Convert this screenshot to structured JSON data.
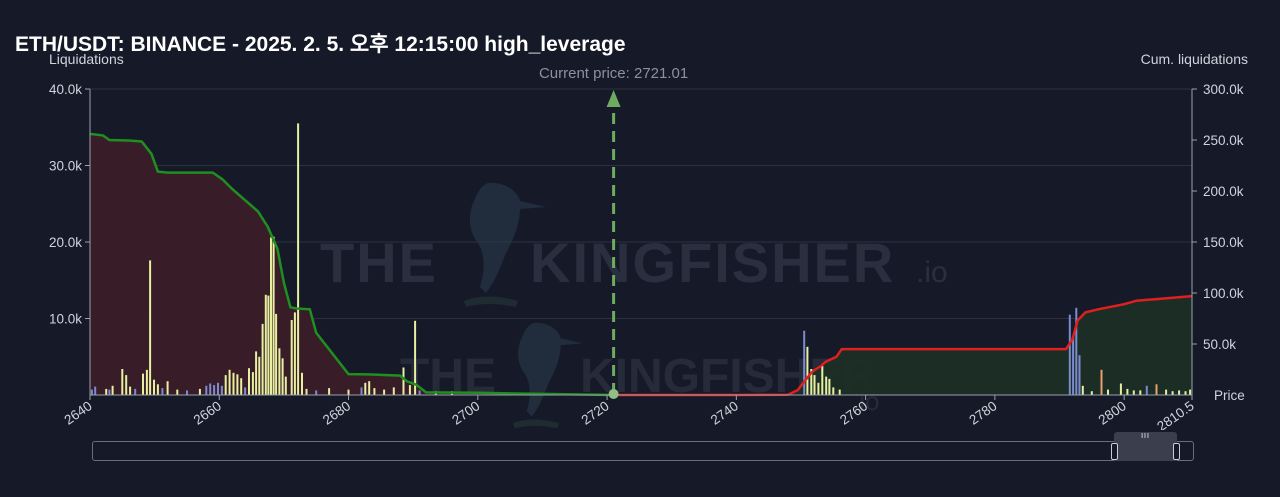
{
  "header": {
    "title": "ETH/USDT: BINANCE - 2025. 2. 5. 오후 12:15:00 high_leverage"
  },
  "watermark": {
    "brand": "THE KINGFISHER",
    "suffix": ".io"
  },
  "scroller": {
    "grip": "III"
  },
  "chart_data": {
    "type": "bar",
    "left_axis_label": "Liquidations",
    "right_axis_label": "Cum. liquidations",
    "x_axis_label": "Price",
    "current_price_label": "Current price: 2721.01",
    "current_price": 2721.01,
    "xlim": [
      2640,
      2810.5
    ],
    "ylim_left": [
      0,
      40000
    ],
    "ylim_right": [
      0,
      300000
    ],
    "x_ticks": [
      2640,
      2660,
      2680,
      2700,
      2720,
      2740,
      2760,
      2780,
      2800,
      2810.5
    ],
    "x_tick_labels": [
      "2640",
      "2660",
      "2680",
      "2700",
      "2720",
      "2740",
      "2760",
      "2780",
      "2800",
      "2810.5"
    ],
    "y_ticks_left": [
      10000,
      20000,
      30000,
      40000
    ],
    "y_tick_labels_left": [
      "10.0k",
      "20.0k",
      "30.0k",
      "40.0k"
    ],
    "y_ticks_right": [
      50000,
      100000,
      150000,
      200000,
      250000,
      300000
    ],
    "y_tick_labels_right": [
      "50.0k",
      "100.0k",
      "150.0k",
      "200.0k",
      "250.0k",
      "300.0k"
    ],
    "colors": {
      "long_cum_line": "#1f8f1f",
      "short_cum_line": "#e01f1f",
      "long_fill": "#3a1d28",
      "short_fill": "#1b2e25",
      "bar_yellow": "#e7f0a0",
      "bar_blue": "#7c8bd0",
      "bar_orange": "#e8a070",
      "current_price_line": "#6dab5f",
      "grid": "#2c3040"
    },
    "long_bars": [
      {
        "x": 2640.3,
        "v": 700,
        "c": "blue"
      },
      {
        "x": 2640.8,
        "v": 1100,
        "c": "blue"
      },
      {
        "x": 2642.5,
        "v": 800,
        "c": "yellow"
      },
      {
        "x": 2643.0,
        "v": 700,
        "c": "blue"
      },
      {
        "x": 2643.5,
        "v": 1200,
        "c": "yellow"
      },
      {
        "x": 2645.0,
        "v": 3400,
        "c": "yellow"
      },
      {
        "x": 2645.6,
        "v": 2600,
        "c": "yellow"
      },
      {
        "x": 2646.2,
        "v": 1100,
        "c": "yellow"
      },
      {
        "x": 2647.0,
        "v": 800,
        "c": "blue"
      },
      {
        "x": 2648.2,
        "v": 2800,
        "c": "yellow"
      },
      {
        "x": 2648.8,
        "v": 3300,
        "c": "yellow"
      },
      {
        "x": 2649.3,
        "v": 17600,
        "c": "yellow"
      },
      {
        "x": 2649.9,
        "v": 2000,
        "c": "yellow"
      },
      {
        "x": 2650.5,
        "v": 1400,
        "c": "yellow"
      },
      {
        "x": 2651.2,
        "v": 900,
        "c": "blue"
      },
      {
        "x": 2652.0,
        "v": 1800,
        "c": "yellow"
      },
      {
        "x": 2653.5,
        "v": 700,
        "c": "yellow"
      },
      {
        "x": 2655.0,
        "v": 600,
        "c": "blue"
      },
      {
        "x": 2657.0,
        "v": 800,
        "c": "yellow"
      },
      {
        "x": 2658.0,
        "v": 1200,
        "c": "blue"
      },
      {
        "x": 2658.6,
        "v": 1500,
        "c": "blue"
      },
      {
        "x": 2659.2,
        "v": 1300,
        "c": "blue"
      },
      {
        "x": 2659.8,
        "v": 1600,
        "c": "blue"
      },
      {
        "x": 2660.4,
        "v": 1200,
        "c": "blue"
      },
      {
        "x": 2661.0,
        "v": 2600,
        "c": "yellow"
      },
      {
        "x": 2661.6,
        "v": 3300,
        "c": "yellow"
      },
      {
        "x": 2662.2,
        "v": 2900,
        "c": "yellow"
      },
      {
        "x": 2662.8,
        "v": 2700,
        "c": "yellow"
      },
      {
        "x": 2663.4,
        "v": 2200,
        "c": "yellow"
      },
      {
        "x": 2664.0,
        "v": 1000,
        "c": "blue"
      },
      {
        "x": 2664.6,
        "v": 3500,
        "c": "yellow"
      },
      {
        "x": 2665.2,
        "v": 3000,
        "c": "yellow"
      },
      {
        "x": 2665.7,
        "v": 5700,
        "c": "yellow"
      },
      {
        "x": 2666.2,
        "v": 5000,
        "c": "yellow"
      },
      {
        "x": 2666.7,
        "v": 9300,
        "c": "yellow"
      },
      {
        "x": 2667.2,
        "v": 13100,
        "c": "yellow"
      },
      {
        "x": 2667.6,
        "v": 13000,
        "c": "yellow"
      },
      {
        "x": 2668.0,
        "v": 20600,
        "c": "yellow"
      },
      {
        "x": 2668.4,
        "v": 20700,
        "c": "yellow"
      },
      {
        "x": 2668.8,
        "v": 10600,
        "c": "yellow"
      },
      {
        "x": 2669.3,
        "v": 6100,
        "c": "yellow"
      },
      {
        "x": 2669.8,
        "v": 4800,
        "c": "yellow"
      },
      {
        "x": 2670.3,
        "v": 2400,
        "c": "yellow"
      },
      {
        "x": 2671.2,
        "v": 9800,
        "c": "yellow"
      },
      {
        "x": 2671.7,
        "v": 10800,
        "c": "yellow"
      },
      {
        "x": 2672.2,
        "v": 35500,
        "c": "yellow"
      },
      {
        "x": 2672.8,
        "v": 2900,
        "c": "yellow"
      },
      {
        "x": 2673.5,
        "v": 800,
        "c": "yellow"
      },
      {
        "x": 2675.0,
        "v": 600,
        "c": "blue"
      },
      {
        "x": 2677.0,
        "v": 900,
        "c": "yellow"
      },
      {
        "x": 2680.0,
        "v": 700,
        "c": "yellow"
      },
      {
        "x": 2682.0,
        "v": 1000,
        "c": "blue"
      },
      {
        "x": 2682.6,
        "v": 1600,
        "c": "yellow"
      },
      {
        "x": 2683.2,
        "v": 1800,
        "c": "yellow"
      },
      {
        "x": 2684.0,
        "v": 900,
        "c": "yellow"
      },
      {
        "x": 2685.5,
        "v": 700,
        "c": "yellow"
      },
      {
        "x": 2687.0,
        "v": 1000,
        "c": "yellow"
      },
      {
        "x": 2688.5,
        "v": 3600,
        "c": "yellow"
      },
      {
        "x": 2689.5,
        "v": 1300,
        "c": "yellow"
      },
      {
        "x": 2690.3,
        "v": 9700,
        "c": "yellow"
      },
      {
        "x": 2691.0,
        "v": 600,
        "c": "blue"
      },
      {
        "x": 2693.5,
        "v": 500,
        "c": "yellow"
      },
      {
        "x": 2696.0,
        "v": 500,
        "c": "yellow"
      }
    ],
    "short_bars": [
      {
        "x": 2750.5,
        "v": 8400,
        "c": "blue"
      },
      {
        "x": 2751.0,
        "v": 6300,
        "c": "yellow"
      },
      {
        "x": 2751.6,
        "v": 3400,
        "c": "yellow"
      },
      {
        "x": 2752.1,
        "v": 2600,
        "c": "yellow"
      },
      {
        "x": 2752.7,
        "v": 1600,
        "c": "yellow"
      },
      {
        "x": 2753.3,
        "v": 3800,
        "c": "yellow"
      },
      {
        "x": 2753.9,
        "v": 2400,
        "c": "yellow"
      },
      {
        "x": 2754.4,
        "v": 2100,
        "c": "yellow"
      },
      {
        "x": 2755.0,
        "v": 1000,
        "c": "yellow"
      },
      {
        "x": 2756.0,
        "v": 700,
        "c": "yellow"
      },
      {
        "x": 2791.6,
        "v": 10500,
        "c": "blue"
      },
      {
        "x": 2792.1,
        "v": 7500,
        "c": "blue"
      },
      {
        "x": 2792.6,
        "v": 11400,
        "c": "blue"
      },
      {
        "x": 2793.1,
        "v": 5200,
        "c": "blue"
      },
      {
        "x": 2793.6,
        "v": 1200,
        "c": "yellow"
      },
      {
        "x": 2795.0,
        "v": 500,
        "c": "yellow"
      },
      {
        "x": 2796.5,
        "v": 3300,
        "c": "orange"
      },
      {
        "x": 2797.5,
        "v": 700,
        "c": "yellow"
      },
      {
        "x": 2799.5,
        "v": 1500,
        "c": "yellow"
      },
      {
        "x": 2800.5,
        "v": 800,
        "c": "yellow"
      },
      {
        "x": 2801.5,
        "v": 600,
        "c": "yellow"
      },
      {
        "x": 2802.5,
        "v": 600,
        "c": "yellow"
      },
      {
        "x": 2803.5,
        "v": 1200,
        "c": "blue"
      },
      {
        "x": 2805.0,
        "v": 1400,
        "c": "orange"
      },
      {
        "x": 2806.5,
        "v": 700,
        "c": "yellow"
      },
      {
        "x": 2807.5,
        "v": 500,
        "c": "yellow"
      },
      {
        "x": 2808.5,
        "v": 600,
        "c": "yellow"
      },
      {
        "x": 2809.5,
        "v": 500,
        "c": "yellow"
      },
      {
        "x": 2810.2,
        "v": 700,
        "c": "yellow"
      }
    ],
    "long_cum_series": {
      "x": [
        2640,
        2642,
        2643,
        2646,
        2648,
        2649.5,
        2650.5,
        2652,
        2659,
        2660.5,
        2662,
        2664,
        2666,
        2667.5,
        2669,
        2670,
        2671,
        2672,
        2674,
        2675,
        2680,
        2683,
        2688,
        2689,
        2690.5,
        2692,
        2700,
        2710,
        2721.01
      ],
      "y": [
        256000,
        254500,
        250000,
        249500,
        248500,
        236500,
        219000,
        218000,
        218000,
        211500,
        202000,
        191000,
        180000,
        165000,
        143500,
        110000,
        86000,
        84800,
        84000,
        61000,
        20500,
        20200,
        19000,
        13500,
        10000,
        2500,
        2200,
        1100,
        0
      ]
    },
    "short_cum_series": {
      "x": [
        2721.01,
        2730,
        2740,
        2748,
        2749.5,
        2750.5,
        2751.5,
        2752,
        2753,
        2753.8,
        2754.5,
        2755.5,
        2756.3,
        2791,
        2792,
        2792.8,
        2794,
        2796,
        2800,
        2802,
        2805,
        2810.5
      ],
      "y": [
        0,
        0,
        0,
        200,
        4800,
        13000,
        21000,
        24000,
        28000,
        32500,
        34500,
        37500,
        45000,
        45000,
        54500,
        73000,
        81000,
        84000,
        89000,
        92500,
        94000,
        97000
      ]
    }
  }
}
